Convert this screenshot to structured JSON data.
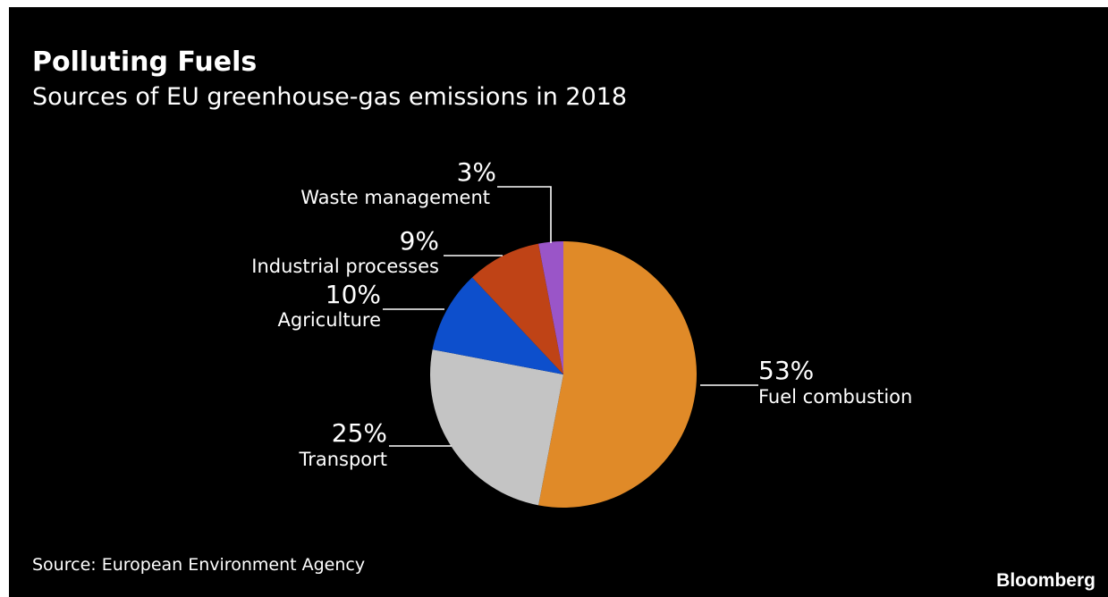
{
  "header": {
    "title": "Polluting Fuels",
    "subtitle": "Sources of EU greenhouse-gas emissions in 2018"
  },
  "footer": {
    "source": "Source: European Environment Agency",
    "brand": "Bloomberg"
  },
  "colors": {
    "background": "#000000",
    "text": "#ffffff",
    "leader": "#ffffff"
  },
  "chart_data": {
    "type": "pie",
    "start_angle_deg": 0,
    "direction": "clockwise",
    "legend": "none",
    "slices": [
      {
        "label": "Fuel combustion",
        "value": 53,
        "value_label": "53%",
        "color": "#e08a28"
      },
      {
        "label": "Transport",
        "value": 25,
        "value_label": "25%",
        "color": "#c4c4c4"
      },
      {
        "label": "Agriculture",
        "value": 10,
        "value_label": "10%",
        "color": "#0d4fcc"
      },
      {
        "label": "Industrial processes",
        "value": 9,
        "value_label": "9%",
        "color": "#bf4316"
      },
      {
        "label": "Waste management",
        "value": 3,
        "value_label": "3%",
        "color": "#9a55c8"
      }
    ]
  }
}
